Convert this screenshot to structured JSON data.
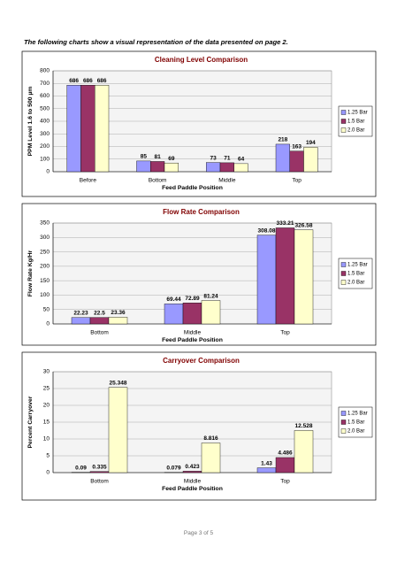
{
  "intro": "The following charts show a visual representation of the data presented on page 2.",
  "footer": "Page 3 of 5",
  "chart_data": [
    {
      "type": "bar",
      "title": "Cleaning Level Comparison",
      "x_label": "Feed Paddle Position",
      "y_label": "PPM Level 1.6 to 500 µm",
      "categories": [
        "Before",
        "Bottom",
        "Middle",
        "Top"
      ],
      "series": [
        {
          "name": "1.25 Bar",
          "color": "#9999ff",
          "values": [
            686,
            85,
            73,
            218
          ]
        },
        {
          "name": "1.5 Bar",
          "color": "#993366",
          "values": [
            686,
            81,
            71,
            163
          ]
        },
        {
          "name": "2.0 Bar",
          "color": "#ffffcc",
          "values": [
            686,
            69,
            64,
            194
          ]
        }
      ],
      "ylim": [
        0,
        800
      ],
      "yticks": [
        0,
        100,
        200,
        300,
        400,
        500,
        600,
        700,
        800
      ],
      "grid": true,
      "legend": "right"
    },
    {
      "type": "bar",
      "title": "Flow Rate Comparison",
      "x_label": "Feed Paddle Position",
      "y_label": "Flow Rate Kg/Hr",
      "categories": [
        "Bottom",
        "Middle",
        "Top"
      ],
      "series": [
        {
          "name": "1.25 Bar",
          "color": "#9999ff",
          "values": [
            22.23,
            69.44,
            308.08
          ]
        },
        {
          "name": "1.5 Bar",
          "color": "#993366",
          "values": [
            22.5,
            72.89,
            333.21
          ]
        },
        {
          "name": "2.0 Bar",
          "color": "#ffffcc",
          "values": [
            23.36,
            81.24,
            326.58
          ]
        }
      ],
      "ylim": [
        0,
        350
      ],
      "yticks": [
        0,
        50,
        100,
        150,
        200,
        250,
        300,
        350
      ],
      "grid": true,
      "legend": "right"
    },
    {
      "type": "bar",
      "title": "Carryover Comparison",
      "x_label": "Feed Paddle Position",
      "y_label": "Percent Carryover",
      "categories": [
        "Bottom",
        "Middle",
        "Top"
      ],
      "series": [
        {
          "name": "1.25 Bar",
          "color": "#9999ff",
          "values": [
            0.09,
            0.079,
            1.43
          ]
        },
        {
          "name": "1.5 Bar",
          "color": "#993366",
          "values": [
            0.335,
            0.423,
            4.486
          ]
        },
        {
          "name": "2.0 Bar",
          "color": "#ffffcc",
          "values": [
            25.348,
            8.816,
            12.528
          ]
        }
      ],
      "ylim": [
        0,
        30
      ],
      "yticks": [
        0,
        5,
        10,
        15,
        20,
        25,
        30
      ],
      "grid": true,
      "legend": "right"
    }
  ]
}
